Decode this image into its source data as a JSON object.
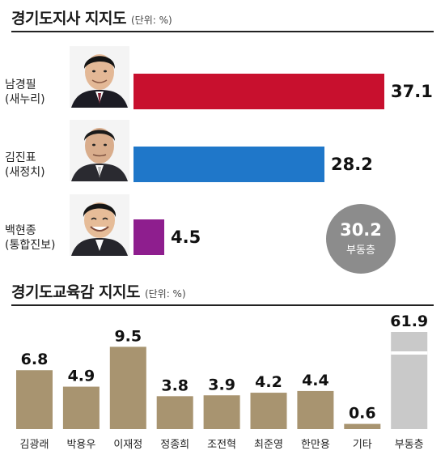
{
  "governor": {
    "title": "경기도지사 지지도",
    "unit": "(단위: %)",
    "undecided": {
      "value": "30.2",
      "label": "부동층"
    }
  },
  "education": {
    "title": "경기도교육감 지지도",
    "unit": "(단위: %)"
  },
  "colors": {
    "saenuri": "#c8102e",
    "saejeongchi": "#1f77c9",
    "tonghap": "#8e1e8e",
    "edu_bar": "#a89470",
    "undecided_bar": "#c9c9c9",
    "circle": "#8c8c8c"
  },
  "chart_data": [
    {
      "type": "bar",
      "orientation": "horizontal",
      "title": "경기도지사 지지도",
      "unit": "%",
      "categories": [
        "남경필",
        "김진표",
        "백현종"
      ],
      "parties": [
        "(새누리)",
        "(새정치)",
        "(통합진보)"
      ],
      "values": [
        37.1,
        28.2,
        4.5
      ],
      "value_labels": [
        "37.1",
        "28.2",
        "4.5"
      ],
      "colors": [
        "#c8102e",
        "#1f77c9",
        "#8e1e8e"
      ],
      "max": 37.1
    },
    {
      "type": "bar",
      "orientation": "vertical",
      "title": "경기도교육감 지지도",
      "unit": "%",
      "categories": [
        "김광래",
        "박용우",
        "이재정",
        "정종희",
        "조전혁",
        "최준영",
        "한만용",
        "기타",
        "부동층"
      ],
      "values": [
        6.8,
        4.9,
        9.5,
        3.8,
        3.9,
        4.2,
        4.4,
        0.6,
        61.9
      ],
      "value_labels": [
        "6.8",
        "4.9",
        "9.5",
        "3.8",
        "3.9",
        "4.2",
        "4.4",
        "0.6",
        "61.9"
      ],
      "broken_axis_category": "부동층"
    }
  ]
}
